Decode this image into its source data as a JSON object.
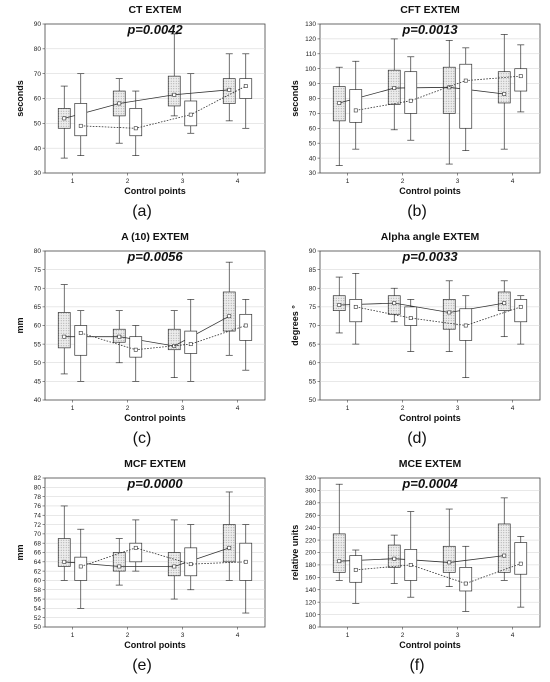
{
  "chart_data": [
    {
      "panel": "a",
      "type": "box",
      "title": "CT EXTEM",
      "pvalue": "p=0.0042",
      "ylabel": "seconds",
      "xlabel": "Control points",
      "caption": "(a)",
      "ylim": [
        30,
        90
      ],
      "yticks": [
        30,
        40,
        50,
        60,
        70,
        80,
        90
      ],
      "categories": [
        "1",
        "2",
        "3",
        "4"
      ],
      "series": [
        {
          "style": "shaded",
          "line": "solid",
          "boxes": [
            {
              "x": 0.85,
              "whisker_low": 36,
              "q1": 48,
              "mean": 52,
              "q3": 56,
              "whisker_high": 65
            },
            {
              "x": 1.85,
              "whisker_low": 42,
              "q1": 53,
              "mean": 58,
              "q3": 63,
              "whisker_high": 68
            },
            {
              "x": 2.85,
              "whisker_low": 53,
              "q1": 57,
              "mean": 61.5,
              "q3": 69,
              "whisker_high": 86
            },
            {
              "x": 3.85,
              "whisker_low": 51,
              "q1": 58,
              "mean": 63.5,
              "q3": 68,
              "whisker_high": 78
            }
          ]
        },
        {
          "style": "plain",
          "line": "dotted",
          "boxes": [
            {
              "x": 1.15,
              "whisker_low": 37,
              "q1": 45,
              "mean": 49,
              "q3": 58,
              "whisker_high": 70
            },
            {
              "x": 2.15,
              "whisker_low": 37,
              "q1": 45,
              "mean": 48,
              "q3": 56,
              "whisker_high": 63
            },
            {
              "x": 3.15,
              "whisker_low": 46,
              "q1": 49,
              "mean": 53.5,
              "q3": 59,
              "whisker_high": 70
            },
            {
              "x": 4.15,
              "whisker_low": 48,
              "q1": 60,
              "mean": 65,
              "q3": 68,
              "whisker_high": 78
            }
          ]
        }
      ]
    },
    {
      "panel": "b",
      "type": "box",
      "title": "CFT EXTEM",
      "pvalue": "p=0.0013",
      "ylabel": "seconds",
      "xlabel": "Control points",
      "caption": "(b)",
      "ylim": [
        30,
        130
      ],
      "yticks": [
        30,
        40,
        50,
        60,
        70,
        80,
        90,
        100,
        110,
        120,
        130
      ],
      "categories": [
        "1",
        "2",
        "3",
        "4"
      ],
      "series": [
        {
          "style": "shaded",
          "line": "solid",
          "boxes": [
            {
              "x": 0.85,
              "whisker_low": 35,
              "q1": 65,
              "mean": 77,
              "q3": 88,
              "whisker_high": 101
            },
            {
              "x": 1.85,
              "whisker_low": 59,
              "q1": 76,
              "mean": 87,
              "q3": 99,
              "whisker_high": 120
            },
            {
              "x": 2.85,
              "whisker_low": 36,
              "q1": 70,
              "mean": 87.5,
              "q3": 101,
              "whisker_high": 119
            },
            {
              "x": 3.85,
              "whisker_low": 46,
              "q1": 77,
              "mean": 83,
              "q3": 98,
              "whisker_high": 123
            }
          ]
        },
        {
          "style": "plain",
          "line": "dotted",
          "boxes": [
            {
              "x": 1.15,
              "whisker_low": 46,
              "q1": 64,
              "mean": 72,
              "q3": 86,
              "whisker_high": 105
            },
            {
              "x": 2.15,
              "whisker_low": 52,
              "q1": 70,
              "mean": 78.5,
              "q3": 98,
              "whisker_high": 108
            },
            {
              "x": 3.15,
              "whisker_low": 45,
              "q1": 60,
              "mean": 92,
              "q3": 103,
              "whisker_high": 114
            },
            {
              "x": 4.15,
              "whisker_low": 71,
              "q1": 85,
              "mean": 95,
              "q3": 100,
              "whisker_high": 116
            }
          ]
        }
      ]
    },
    {
      "panel": "c",
      "type": "box",
      "title": "A (10) EXTEM",
      "pvalue": "p=0.0056",
      "ylabel": "mm",
      "xlabel": "Control points",
      "caption": "(c)",
      "ylim": [
        40,
        80
      ],
      "yticks": [
        40,
        45,
        50,
        55,
        60,
        65,
        70,
        75,
        80
      ],
      "categories": [
        "1",
        "2",
        "3",
        "4"
      ],
      "series": [
        {
          "style": "shaded",
          "line": "solid",
          "boxes": [
            {
              "x": 0.85,
              "whisker_low": 47,
              "q1": 54,
              "mean": 57,
              "q3": 63.5,
              "whisker_high": 71
            },
            {
              "x": 1.85,
              "whisker_low": 50,
              "q1": 55.5,
              "mean": 57,
              "q3": 59,
              "whisker_high": 64
            },
            {
              "x": 2.85,
              "whisker_low": 46,
              "q1": 53.5,
              "mean": 54.5,
              "q3": 59,
              "whisker_high": 64
            },
            {
              "x": 3.85,
              "whisker_low": 52,
              "q1": 58.5,
              "mean": 62.5,
              "q3": 69,
              "whisker_high": 77
            }
          ]
        },
        {
          "style": "plain",
          "line": "dotted",
          "boxes": [
            {
              "x": 1.15,
              "whisker_low": 45,
              "q1": 52,
              "mean": 58,
              "q3": 60,
              "whisker_high": 64
            },
            {
              "x": 2.15,
              "whisker_low": 45,
              "q1": 51.5,
              "mean": 53.5,
              "q3": 57,
              "whisker_high": 60
            },
            {
              "x": 3.15,
              "whisker_low": 45,
              "q1": 52.5,
              "mean": 55,
              "q3": 58.5,
              "whisker_high": 67
            },
            {
              "x": 4.15,
              "whisker_low": 48,
              "q1": 56,
              "mean": 60,
              "q3": 63,
              "whisker_high": 67
            }
          ]
        }
      ]
    },
    {
      "panel": "d",
      "type": "box",
      "title": "Alpha angle EXTEM",
      "pvalue": "p=0.0033",
      "ylabel": "degrees °",
      "xlabel": "Control points",
      "caption": "(d)",
      "ylim": [
        50,
        90
      ],
      "yticks": [
        50,
        55,
        60,
        65,
        70,
        75,
        80,
        85,
        90
      ],
      "categories": [
        "1",
        "2",
        "3",
        "4"
      ],
      "series": [
        {
          "style": "shaded",
          "line": "solid",
          "boxes": [
            {
              "x": 0.85,
              "whisker_low": 68,
              "q1": 74,
              "mean": 75.5,
              "q3": 78,
              "whisker_high": 83
            },
            {
              "x": 1.85,
              "whisker_low": 71,
              "q1": 73,
              "mean": 76,
              "q3": 78,
              "whisker_high": 80
            },
            {
              "x": 2.85,
              "whisker_low": 63,
              "q1": 69,
              "mean": 73.5,
              "q3": 77,
              "whisker_high": 82
            },
            {
              "x": 3.85,
              "whisker_low": 67,
              "q1": 74,
              "mean": 76,
              "q3": 79,
              "whisker_high": 82
            }
          ]
        },
        {
          "style": "plain",
          "line": "dotted",
          "boxes": [
            {
              "x": 1.15,
              "whisker_low": 65,
              "q1": 71,
              "mean": 75,
              "q3": 77,
              "whisker_high": 84
            },
            {
              "x": 2.15,
              "whisker_low": 63,
              "q1": 70,
              "mean": 72,
              "q3": 75,
              "whisker_high": 77
            },
            {
              "x": 3.15,
              "whisker_low": 56,
              "q1": 66,
              "mean": 70,
              "q3": 74.5,
              "whisker_high": 78
            },
            {
              "x": 4.15,
              "whisker_low": 65,
              "q1": 71,
              "mean": 75,
              "q3": 77,
              "whisker_high": 78
            }
          ]
        }
      ]
    },
    {
      "panel": "e",
      "type": "box",
      "title": "MCF EXTEM",
      "pvalue": "p=0.0000",
      "ylabel": "mm",
      "xlabel": "Control points",
      "caption": "(e)",
      "ylim": [
        50,
        82
      ],
      "yticks": [
        50,
        52,
        54,
        56,
        58,
        60,
        62,
        64,
        66,
        68,
        70,
        72,
        74,
        76,
        78,
        80,
        82
      ],
      "categories": [
        "1",
        "2",
        "3",
        "4"
      ],
      "series": [
        {
          "style": "shaded",
          "line": "solid",
          "boxes": [
            {
              "x": 0.85,
              "whisker_low": 60,
              "q1": 63,
              "mean": 64,
              "q3": 69,
              "whisker_high": 76
            },
            {
              "x": 1.85,
              "whisker_low": 59,
              "q1": 62,
              "mean": 63,
              "q3": 66,
              "whisker_high": 69
            },
            {
              "x": 2.85,
              "whisker_low": 56,
              "q1": 61,
              "mean": 63,
              "q3": 66,
              "whisker_high": 73
            },
            {
              "x": 3.85,
              "whisker_low": 60,
              "q1": 64,
              "mean": 67,
              "q3": 72,
              "whisker_high": 79
            }
          ]
        },
        {
          "style": "plain",
          "line": "dotted",
          "boxes": [
            {
              "x": 1.15,
              "whisker_low": 54,
              "q1": 60,
              "mean": 63,
              "q3": 65,
              "whisker_high": 71
            },
            {
              "x": 2.15,
              "whisker_low": 62,
              "q1": 64,
              "mean": 67,
              "q3": 68,
              "whisker_high": 73
            },
            {
              "x": 3.15,
              "whisker_low": 58,
              "q1": 61,
              "mean": 63.5,
              "q3": 67,
              "whisker_high": 72
            },
            {
              "x": 4.15,
              "whisker_low": 53,
              "q1": 60,
              "mean": 64,
              "q3": 68,
              "whisker_high": 72
            }
          ]
        }
      ]
    },
    {
      "panel": "f",
      "type": "box",
      "title": "MCE EXTEM",
      "pvalue": "p=0.0004",
      "ylabel": "relative units",
      "xlabel": "Control points",
      "caption": "(f)",
      "ylim": [
        80,
        320
      ],
      "yticks": [
        80,
        100,
        120,
        140,
        160,
        180,
        200,
        220,
        240,
        260,
        280,
        300,
        320
      ],
      "categories": [
        "1",
        "2",
        "3",
        "4"
      ],
      "series": [
        {
          "style": "shaded",
          "line": "solid",
          "boxes": [
            {
              "x": 0.85,
              "whisker_low": 155,
              "q1": 168,
              "mean": 186,
              "q3": 230,
              "whisker_high": 310
            },
            {
              "x": 1.85,
              "whisker_low": 150,
              "q1": 176,
              "mean": 190,
              "q3": 212,
              "whisker_high": 228
            },
            {
              "x": 2.85,
              "whisker_low": 145,
              "q1": 168,
              "mean": 184,
              "q3": 210,
              "whisker_high": 270
            },
            {
              "x": 3.85,
              "whisker_low": 155,
              "q1": 168,
              "mean": 195,
              "q3": 246,
              "whisker_high": 288
            }
          ]
        },
        {
          "style": "plain",
          "line": "dotted",
          "boxes": [
            {
              "x": 1.15,
              "whisker_low": 118,
              "q1": 152,
              "mean": 172,
              "q3": 195,
              "whisker_high": 204
            },
            {
              "x": 2.15,
              "whisker_low": 128,
              "q1": 155,
              "mean": 180,
              "q3": 205,
              "whisker_high": 266
            },
            {
              "x": 3.15,
              "whisker_low": 105,
              "q1": 138,
              "mean": 150,
              "q3": 176,
              "whisker_high": 210
            },
            {
              "x": 4.15,
              "whisker_low": 112,
              "q1": 165,
              "mean": 182,
              "q3": 216,
              "whisker_high": 226
            }
          ]
        }
      ]
    }
  ]
}
